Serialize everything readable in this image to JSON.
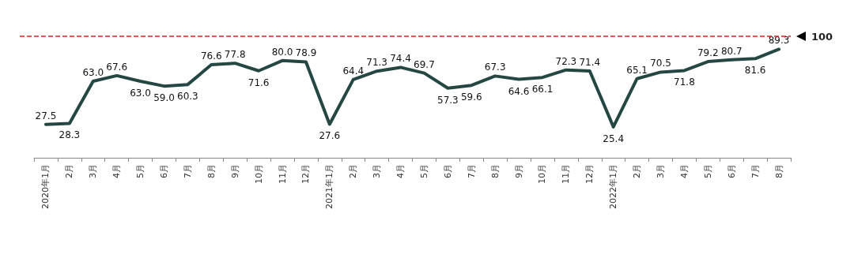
{
  "chart_data": {
    "type": "line",
    "categories": [
      "2020年1月",
      "2月",
      "3月",
      "4月",
      "5月",
      "6月",
      "7月",
      "8月",
      "9月",
      "10月",
      "11月",
      "12月",
      "2021年1月",
      "2月",
      "3月",
      "4月",
      "5月",
      "6月",
      "7月",
      "8月",
      "9月",
      "10月",
      "11月",
      "12月",
      "2022年1月",
      "2月",
      "3月",
      "4月",
      "5月",
      "6月",
      "7月",
      "8月"
    ],
    "values": [
      27.5,
      28.3,
      63.0,
      67.6,
      63.0,
      59.0,
      60.3,
      76.6,
      77.8,
      71.6,
      80.0,
      78.9,
      27.6,
      64.4,
      71.3,
      74.4,
      69.7,
      57.3,
      59.6,
      67.3,
      64.6,
      66.1,
      72.3,
      71.4,
      25.4,
      65.1,
      70.5,
      71.8,
      79.2,
      80.7,
      81.6,
      89.3
    ],
    "value_labels": [
      "27.5",
      "28.3",
      "63.0",
      "67.6",
      "63.0",
      "59.0",
      "60.3",
      "76.6",
      "77.8",
      "71.6",
      "80.0",
      "78.9",
      "27.6",
      "64.4",
      "71.3",
      "74.4",
      "69.7",
      "57.3",
      "59.6",
      "67.3",
      "64.6",
      "66.1",
      "72.3",
      "71.4",
      "25.4",
      "65.1",
      "70.5",
      "71.8",
      "79.2",
      "80.7",
      "81.6",
      "89.3"
    ],
    "color": "#254744",
    "tick_labels": "x",
    "marker": "none",
    "line_style": "solid",
    "ref_lines": [
      {
        "axis": "y",
        "value": 100,
        "label": "100",
        "color": "#e02020",
        "line_style": "dashed"
      }
    ]
  }
}
